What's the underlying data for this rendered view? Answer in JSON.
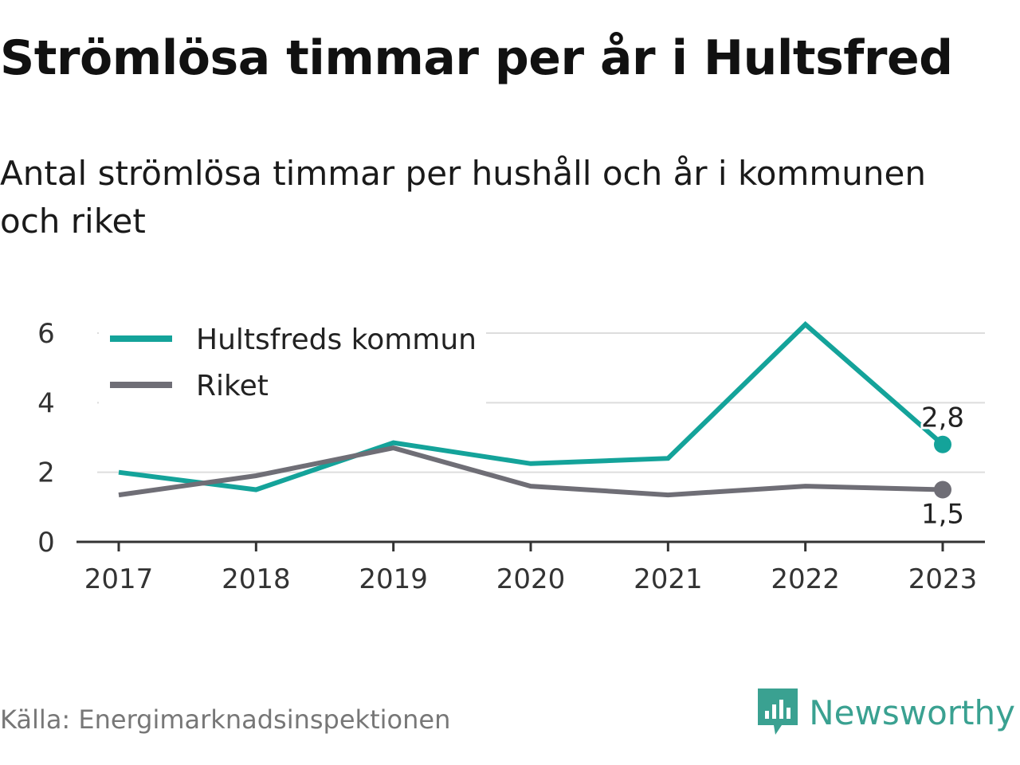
{
  "title": "Strömlösa timmar per år i Hultsfred",
  "subtitle": "Antal strömlösa timmar per hushåll och år i kommunen och riket",
  "source": "Källa: Energimarknadsinspektionen",
  "brand": {
    "name": "Newsworthy",
    "icon": "newsworthy-logo-icon",
    "color": "#3aa191"
  },
  "chart_data": {
    "type": "line",
    "categories": [
      "2017",
      "2018",
      "2019",
      "2020",
      "2021",
      "2022",
      "2023"
    ],
    "series": [
      {
        "name": "Hultsfreds kommun",
        "color": "#14a39a",
        "values": [
          2.0,
          1.5,
          2.85,
          2.25,
          2.4,
          6.25,
          2.8
        ],
        "end_label": "2,8"
      },
      {
        "name": "Riket",
        "color": "#6f6e76",
        "values": [
          1.35,
          1.9,
          2.7,
          1.6,
          1.35,
          1.6,
          1.5
        ],
        "end_label": "1,5"
      }
    ],
    "yticks": [
      "0",
      "2",
      "4",
      "6"
    ],
    "ylim": [
      0,
      6.5
    ],
    "grid": true,
    "legend_position": "top-left"
  }
}
